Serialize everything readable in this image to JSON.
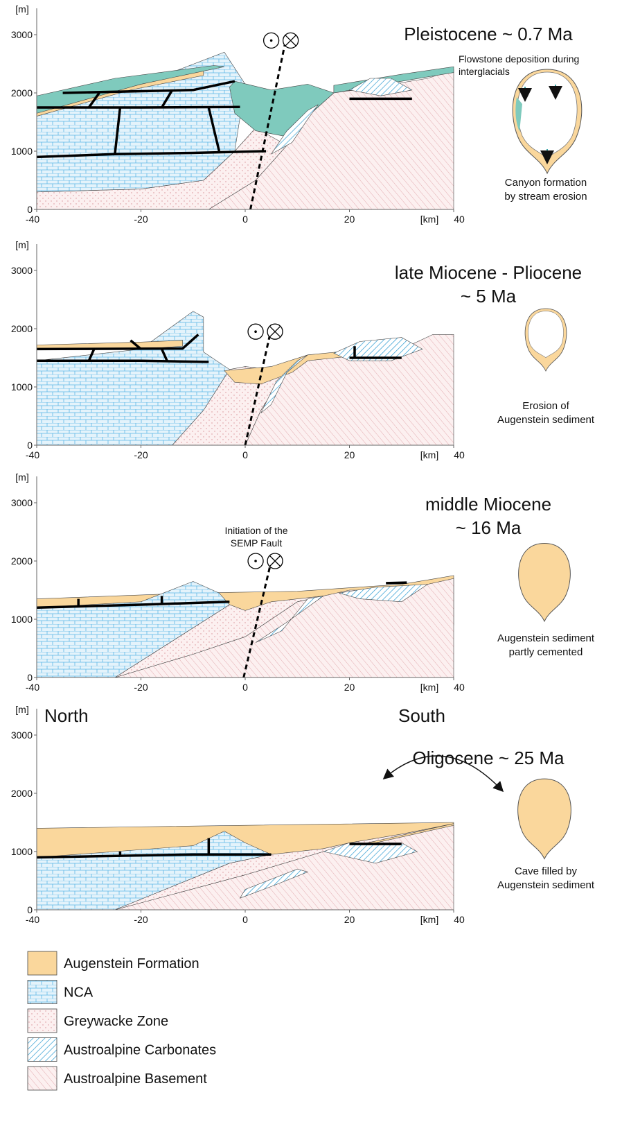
{
  "axes": {
    "y_unit": "[m]",
    "y_ticks": [
      "0",
      "1000",
      "2000",
      "3000"
    ],
    "x_ticks": [
      "-40",
      "-20",
      "0",
      "20",
      "40"
    ],
    "x_unit": "[km]"
  },
  "panels": [
    {
      "title": [
        "Pleistocene ~ 0.7 Ma"
      ],
      "annotation": [
        "Flowstone deposition during",
        "interglacials"
      ],
      "caption": [
        "Canyon formation",
        "by stream erosion"
      ]
    },
    {
      "title": [
        "late Miocene - Pliocene",
        "~ 5 Ma"
      ],
      "caption": [
        "Erosion of",
        "Augenstein sediment"
      ]
    },
    {
      "title": [
        "middle Miocene",
        "~ 16 Ma"
      ],
      "annotation": [
        "Initiation of the",
        "SEMP Fault"
      ],
      "caption": [
        "Augenstein sediment",
        "partly cemented"
      ]
    },
    {
      "title": [
        "Oligocene ~ 25 Ma"
      ],
      "caption": [
        "Cave filled by",
        "Augenstein sediment"
      ]
    }
  ],
  "orientation": {
    "north": "North",
    "south": "South"
  },
  "legend": [
    "Augenstein Formation",
    "NCA",
    "Greywacke Zone",
    "Austroalpine Carbonates",
    "Austroalpine Basement"
  ]
}
